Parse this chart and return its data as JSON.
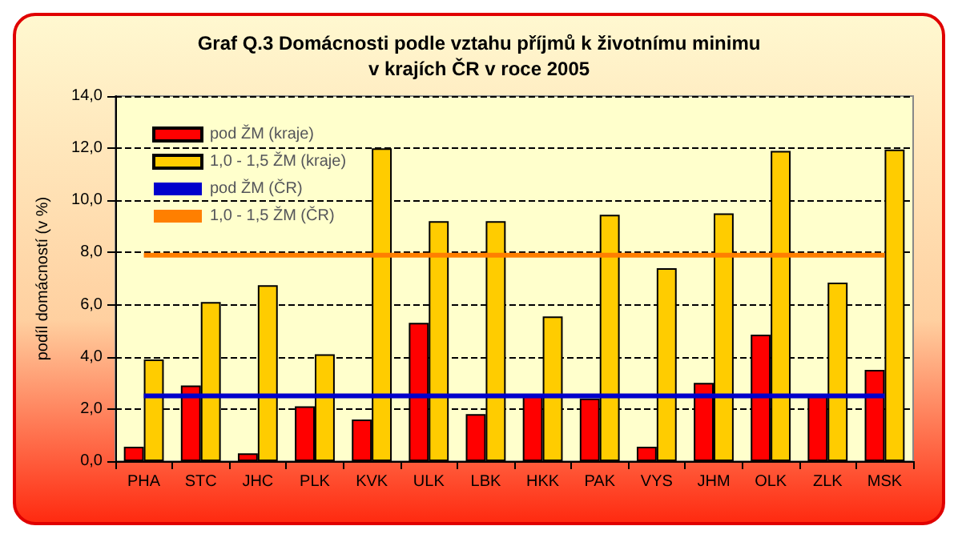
{
  "chart_data": {
    "type": "bar",
    "title": "Graf Q.3 Domácnosti podle vztahu příjmů k životnímu minimu\nv krajích ČR v roce 2005",
    "ylabel": "podíl domácností (v %)",
    "categories": [
      "PHA",
      "STC",
      "JHC",
      "PLK",
      "KVK",
      "ULK",
      "LBK",
      "HKK",
      "PAK",
      "VYS",
      "JHM",
      "OLK",
      "ZLK",
      "MSK"
    ],
    "series": [
      {
        "name": "pod ŽM (kraje)",
        "color": "#ff0000",
        "values": [
          0.55,
          2.9,
          0.3,
          2.1,
          1.6,
          5.3,
          1.8,
          2.5,
          2.4,
          0.55,
          3.0,
          4.85,
          2.5,
          3.5
        ]
      },
      {
        "name": "1,0 - 1,5 ŽM (kraje)",
        "color": "#ffcc00",
        "values": [
          3.9,
          6.1,
          6.75,
          4.1,
          12.0,
          9.2,
          9.2,
          5.55,
          9.45,
          7.4,
          9.5,
          11.9,
          6.85,
          11.95
        ]
      },
      {
        "name": "pod ŽM (ČR)",
        "type": "line",
        "color": "#0000cc",
        "values": [
          2.5,
          2.5,
          2.5,
          2.5,
          2.5,
          2.5,
          2.5,
          2.5,
          2.5,
          2.5,
          2.5,
          2.5,
          2.5,
          2.5
        ]
      },
      {
        "name": "1,0 - 1,5 ŽM (ČR)",
        "type": "line",
        "color": "#ff7f00",
        "values": [
          7.9,
          7.9,
          7.9,
          7.9,
          7.9,
          7.9,
          7.9,
          7.9,
          7.9,
          7.9,
          7.9,
          7.9,
          7.9,
          7.9
        ]
      }
    ],
    "ylim": [
      0,
      14
    ],
    "yticks": [
      {
        "value": 0,
        "label": "0,0"
      },
      {
        "value": 2,
        "label": "2,0"
      },
      {
        "value": 4,
        "label": "4,0"
      },
      {
        "value": 6,
        "label": "6,0"
      },
      {
        "value": 8,
        "label": "8,0"
      },
      {
        "value": 10,
        "label": "10,0"
      },
      {
        "value": 12,
        "label": "12,0"
      },
      {
        "value": 14,
        "label": "14,0"
      }
    ],
    "grid": "y",
    "legend": "top left",
    "marker": "none",
    "line_style": "solid"
  }
}
